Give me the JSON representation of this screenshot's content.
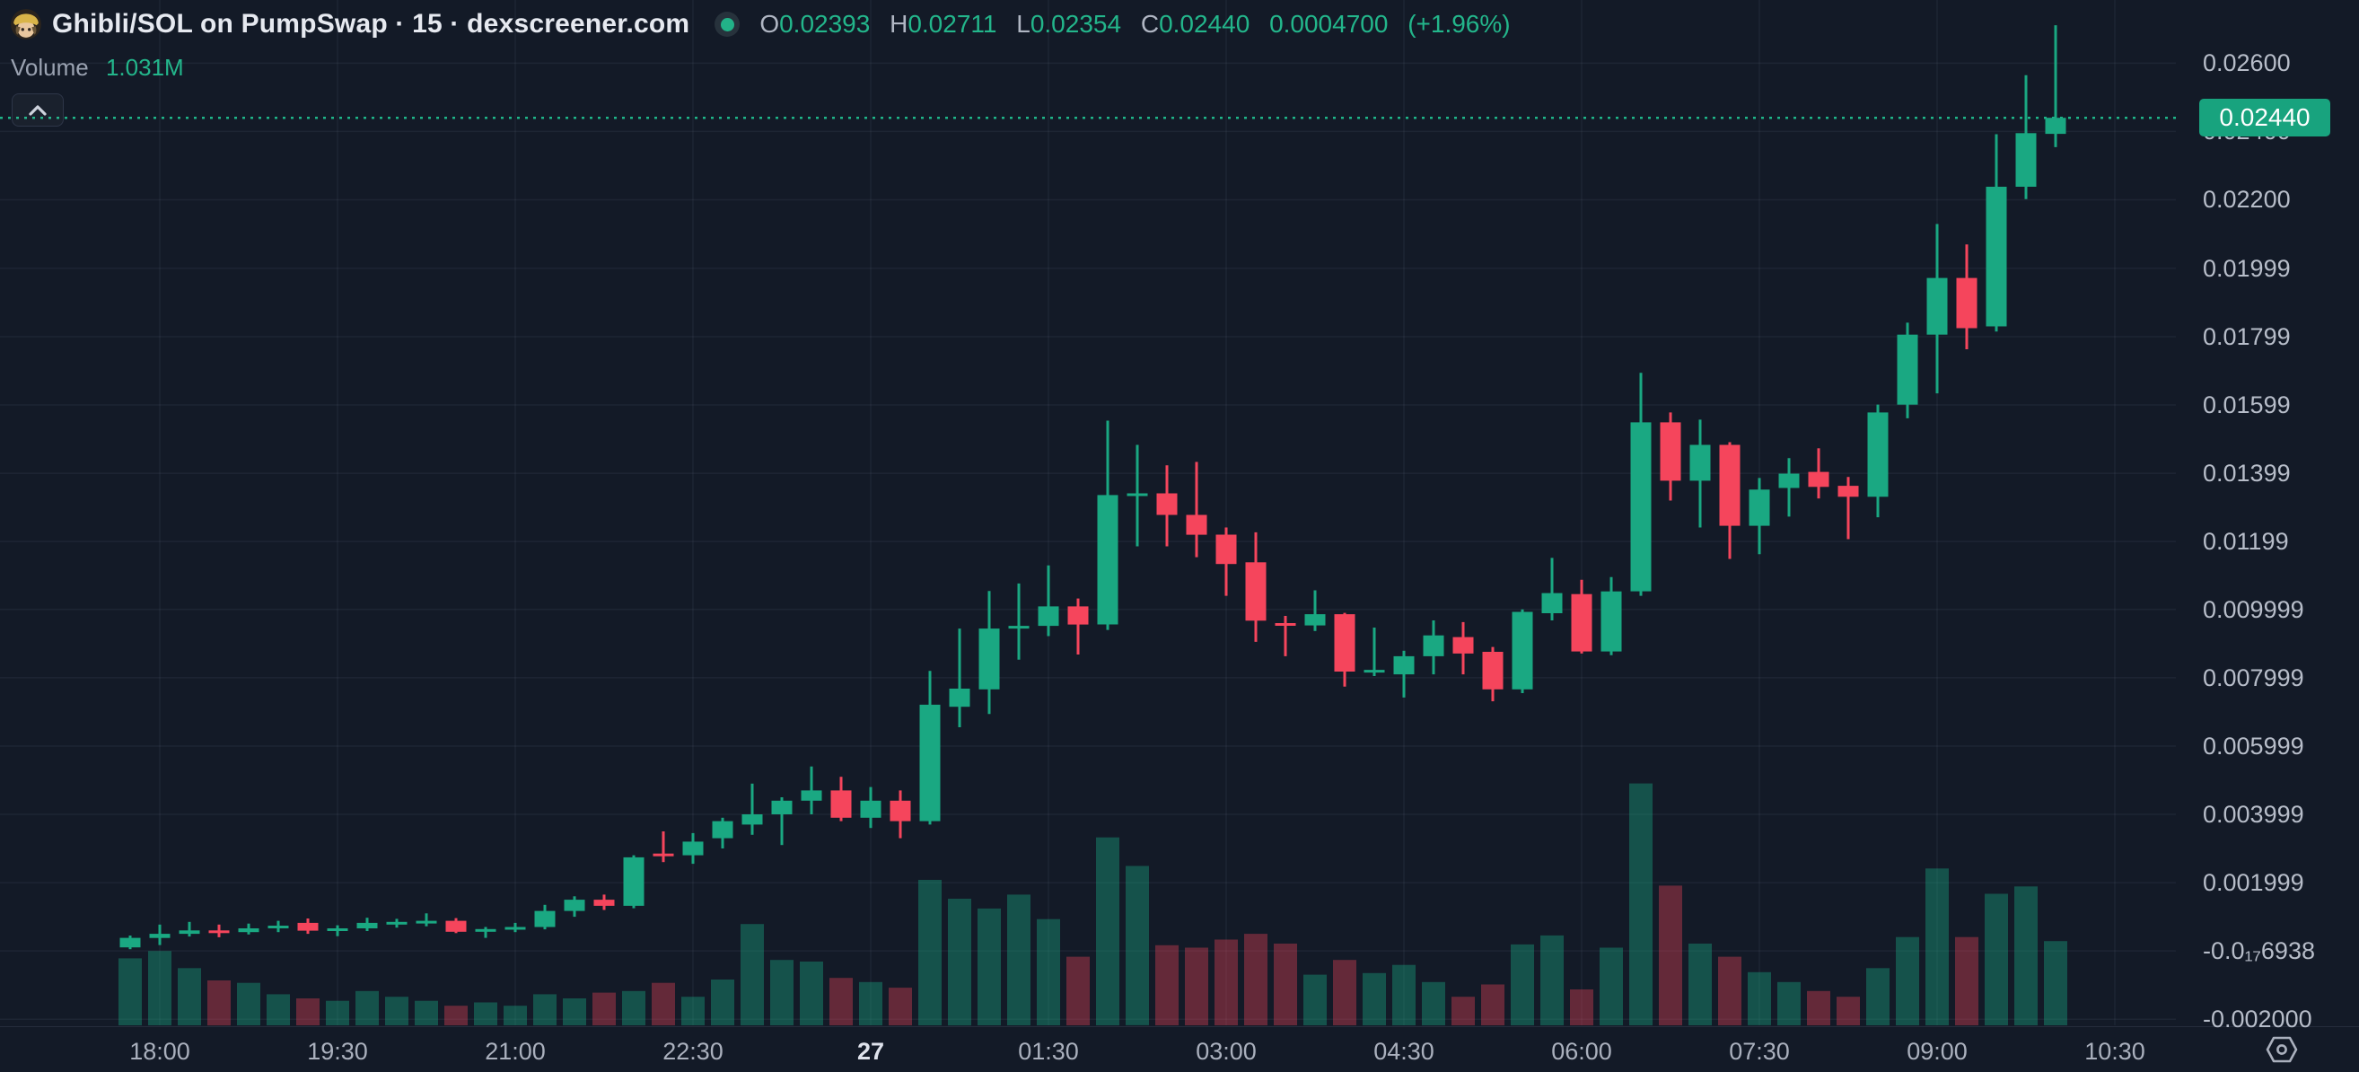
{
  "header": {
    "pair_title": "Ghibli/SOL on PumpSwap · 15 · dexscreener.com",
    "legend": {
      "o_label": "O",
      "o": "0.02393",
      "h_label": "H",
      "h": "0.02711",
      "l_label": "L",
      "l": "0.02354",
      "c_label": "C",
      "c": "0.02440",
      "change_abs": "0.0004700",
      "change_pct": "(+1.96%)"
    },
    "volume_label": "Volume",
    "volume_value": "1.031M"
  },
  "price_axis": {
    "current_price_tag": "0.02440",
    "labels": [
      {
        "text": "0.02600",
        "value": 0.026
      },
      {
        "text": "0.02400",
        "value": 0.024
      },
      {
        "text": "0.02200",
        "value": 0.022
      },
      {
        "text": "0.01999",
        "value": 0.01999
      },
      {
        "text": "0.01799",
        "value": 0.01799
      },
      {
        "text": "0.01599",
        "value": 0.01599
      },
      {
        "text": "0.01399",
        "value": 0.01399
      },
      {
        "text": "0.01199",
        "value": 0.01199
      },
      {
        "text": "0.009999",
        "value": 0.009999
      },
      {
        "text": "0.007999",
        "value": 0.007999
      },
      {
        "text": "0.005999",
        "value": 0.005999
      },
      {
        "text": "0.003999",
        "value": 0.003999
      },
      {
        "text": "0.001999",
        "value": 0.001999
      },
      {
        "text": "-0.0₁₇6938",
        "value": 0.0
      },
      {
        "text": "-0.002000",
        "value": -0.002
      }
    ]
  },
  "time_axis": {
    "labels": [
      {
        "text": "18:00",
        "n": 1
      },
      {
        "text": "19:30",
        "n": 7
      },
      {
        "text": "21:00",
        "n": 13
      },
      {
        "text": "22:30",
        "n": 19
      },
      {
        "text": "27",
        "n": 25,
        "bold": true
      },
      {
        "text": "01:30",
        "n": 31
      },
      {
        "text": "03:00",
        "n": 37
      },
      {
        "text": "04:30",
        "n": 43
      },
      {
        "text": "06:00",
        "n": 49
      },
      {
        "text": "07:30",
        "n": 55
      },
      {
        "text": "09:00",
        "n": 61
      },
      {
        "text": "10:30",
        "n": 67
      }
    ]
  },
  "colors": {
    "background": "#131a27",
    "grid": "rgba(170,185,215,0.07)",
    "up": "#1aa882",
    "down": "#f5455c",
    "volume_up": "rgba(26,168,130,0.40)",
    "volume_down": "rgba(245,69,92,0.36)",
    "price_line": "#1fb589",
    "tag_bg": "#18a37e",
    "axis_text": "#b7bdc9"
  },
  "chart_data": {
    "type": "candlestick_with_volume",
    "title": "Ghibli/SOL on PumpSwap · 15 · dexscreener.com",
    "interval_minutes": 15,
    "current_price": 0.0244,
    "legend_last_candle": {
      "o": 0.02393,
      "h": 0.02711,
      "l": 0.02354,
      "c": 0.0244,
      "volume": "1.031M"
    },
    "price_axis_range": {
      "p_top": 0.02785,
      "p_bottom": -0.00218
    },
    "grid": true,
    "volume_unit": "millions",
    "columns": [
      "time",
      "open",
      "high",
      "low",
      "close",
      "volume_m"
    ],
    "candles": [
      [
        "17:45",
        0.0001,
        0.00045,
        5e-05,
        0.00038,
        0.82
      ],
      [
        "18:00",
        0.00038,
        0.00077,
        0.00017,
        0.0005,
        0.91
      ],
      [
        "18:15",
        0.0005,
        0.00085,
        0.00042,
        0.0006,
        0.7
      ],
      [
        "18:30",
        0.0006,
        0.00077,
        0.0004,
        0.00055,
        0.55
      ],
      [
        "18:45",
        0.00055,
        0.0008,
        0.00048,
        0.00066,
        0.52
      ],
      [
        "19:00",
        0.00066,
        0.00088,
        0.00055,
        0.00074,
        0.38
      ],
      [
        "19:15",
        0.00082,
        0.00095,
        0.0005,
        0.00059,
        0.33
      ],
      [
        "19:30",
        0.00059,
        0.00075,
        0.00043,
        0.00066,
        0.3
      ],
      [
        "19:45",
        0.00066,
        0.00097,
        0.00058,
        0.00082,
        0.42
      ],
      [
        "20:00",
        0.00082,
        0.00094,
        0.00068,
        0.00085,
        0.35
      ],
      [
        "20:15",
        0.00085,
        0.0011,
        0.00072,
        0.00088,
        0.3
      ],
      [
        "20:30",
        0.00088,
        0.00096,
        0.00052,
        0.00056,
        0.24
      ],
      [
        "20:45",
        0.00056,
        0.0007,
        0.00038,
        0.00064,
        0.28
      ],
      [
        "21:00",
        0.00064,
        0.00082,
        0.00055,
        0.0007,
        0.24
      ],
      [
        "21:15",
        0.0007,
        0.00135,
        0.00063,
        0.00117,
        0.38
      ],
      [
        "21:30",
        0.00117,
        0.0016,
        0.001,
        0.0015,
        0.33
      ],
      [
        "21:45",
        0.0015,
        0.00165,
        0.0012,
        0.00132,
        0.4
      ],
      [
        "22:00",
        0.00132,
        0.0028,
        0.00125,
        0.00274,
        0.42
      ],
      [
        "22:15",
        0.00285,
        0.0035,
        0.0026,
        0.0028,
        0.52
      ],
      [
        "22:30",
        0.0028,
        0.00345,
        0.00255,
        0.0032,
        0.35
      ],
      [
        "22:45",
        0.0033,
        0.0039,
        0.003,
        0.0038,
        0.56
      ],
      [
        "23:00",
        0.0037,
        0.0049,
        0.0034,
        0.004,
        1.24
      ],
      [
        "23:15",
        0.004,
        0.0045,
        0.0031,
        0.0044,
        0.8
      ],
      [
        "23:30",
        0.0044,
        0.0054,
        0.004,
        0.0047,
        0.78
      ],
      [
        "23:45",
        0.0047,
        0.0051,
        0.0038,
        0.0039,
        0.58
      ],
      [
        "00:00",
        0.0039,
        0.0048,
        0.0036,
        0.0044,
        0.53
      ],
      [
        "00:15",
        0.0044,
        0.0047,
        0.0033,
        0.0038,
        0.46
      ],
      [
        "00:30",
        0.0038,
        0.0082,
        0.0037,
        0.00721,
        1.78
      ],
      [
        "00:45",
        0.00715,
        0.00944,
        0.00655,
        0.00768,
        1.55
      ],
      [
        "01:00",
        0.00766,
        0.01054,
        0.00694,
        0.00944,
        1.43
      ],
      [
        "01:15",
        0.00944,
        0.01076,
        0.00853,
        0.00952,
        1.6
      ],
      [
        "01:30",
        0.00952,
        0.01129,
        0.00922,
        0.01009,
        1.3
      ],
      [
        "01:45",
        0.01009,
        0.01032,
        0.00868,
        0.00956,
        0.84
      ],
      [
        "02:00",
        0.00956,
        0.01553,
        0.0094,
        0.01335,
        2.3
      ],
      [
        "02:15",
        0.01335,
        0.01482,
        0.01185,
        0.0134,
        1.95
      ],
      [
        "02:30",
        0.0134,
        0.01422,
        0.01185,
        0.01277,
        0.98
      ],
      [
        "02:45",
        0.01277,
        0.01432,
        0.01153,
        0.01219,
        0.95
      ],
      [
        "03:00",
        0.01219,
        0.0124,
        0.0104,
        0.01133,
        1.05
      ],
      [
        "03:15",
        0.01138,
        0.01226,
        0.00905,
        0.00967,
        1.12
      ],
      [
        "03:30",
        0.0096,
        0.00981,
        0.00863,
        0.00952,
        1.0
      ],
      [
        "03:45",
        0.00953,
        0.01056,
        0.00937,
        0.00986,
        0.62
      ],
      [
        "04:00",
        0.00986,
        0.0099,
        0.00774,
        0.00818,
        0.8
      ],
      [
        "04:15",
        0.00818,
        0.00947,
        0.00805,
        0.00823,
        0.64
      ],
      [
        "04:30",
        0.0081,
        0.00879,
        0.00742,
        0.00863,
        0.74
      ],
      [
        "04:45",
        0.00863,
        0.00968,
        0.0081,
        0.00924,
        0.53
      ],
      [
        "05:00",
        0.00919,
        0.00963,
        0.0081,
        0.00871,
        0.35
      ],
      [
        "05:15",
        0.00876,
        0.0089,
        0.00731,
        0.00766,
        0.5
      ],
      [
        "05:30",
        0.00766,
        0.01,
        0.00755,
        0.00993,
        0.99
      ],
      [
        "05:45",
        0.00989,
        0.01151,
        0.00968,
        0.01048,
        1.1
      ],
      [
        "06:00",
        0.01045,
        0.01087,
        0.00871,
        0.00877,
        0.44
      ],
      [
        "06:15",
        0.00877,
        0.01095,
        0.00866,
        0.01053,
        0.95
      ],
      [
        "06:30",
        0.01053,
        0.01693,
        0.0104,
        0.01548,
        2.96
      ],
      [
        "06:45",
        0.01548,
        0.01577,
        0.01319,
        0.01377,
        1.71
      ],
      [
        "07:00",
        0.01377,
        0.01556,
        0.0124,
        0.01482,
        1.0
      ],
      [
        "07:15",
        0.01482,
        0.0149,
        0.01148,
        0.01245,
        0.84
      ],
      [
        "07:30",
        0.01245,
        0.01385,
        0.01162,
        0.01351,
        0.65
      ],
      [
        "07:45",
        0.01356,
        0.01443,
        0.01272,
        0.01398,
        0.53
      ],
      [
        "08:00",
        0.01403,
        0.01472,
        0.01325,
        0.01359,
        0.42
      ],
      [
        "08:15",
        0.01362,
        0.01388,
        0.01206,
        0.0133,
        0.35
      ],
      [
        "08:30",
        0.0133,
        0.016,
        0.0127,
        0.01577,
        0.7
      ],
      [
        "08:45",
        0.016,
        0.0184,
        0.0156,
        0.01805,
        1.08
      ],
      [
        "09:00",
        0.01805,
        0.02129,
        0.01633,
        0.01971,
        1.92
      ],
      [
        "09:15",
        0.01971,
        0.02069,
        0.01762,
        0.01824,
        1.08
      ],
      [
        "09:30",
        0.01829,
        0.02392,
        0.01814,
        0.02238,
        1.61
      ],
      [
        "09:45",
        0.02238,
        0.02565,
        0.02202,
        0.02395,
        1.7
      ],
      [
        "10:00",
        0.02393,
        0.02711,
        0.02354,
        0.0244,
        1.031
      ]
    ]
  }
}
